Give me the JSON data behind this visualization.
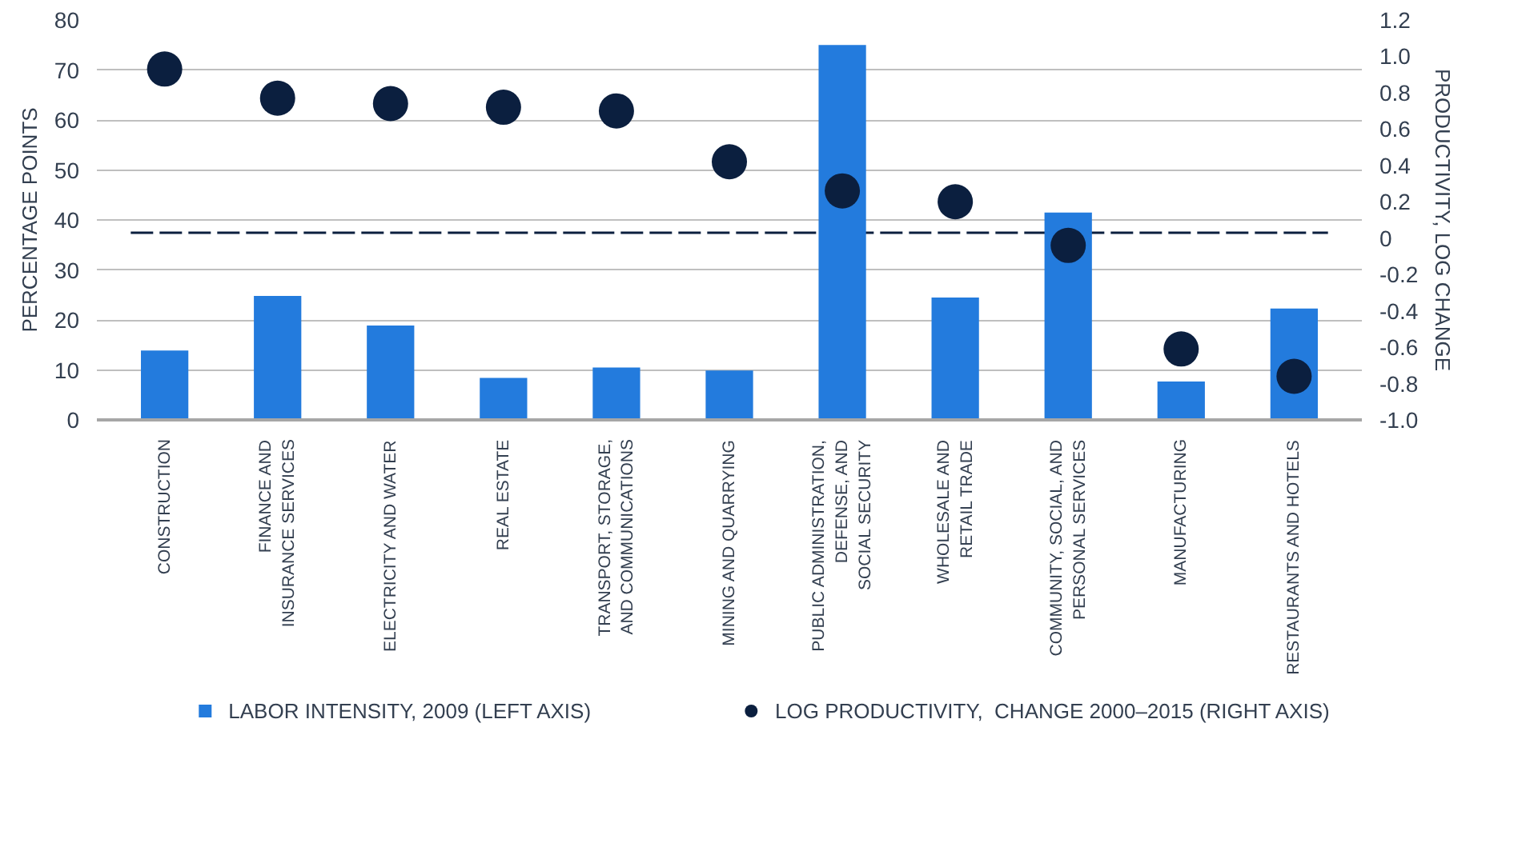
{
  "chart_data": {
    "type": "bar",
    "ylabel": "PERCENTAGE POINTS",
    "y2label": "PRODUCTIVITY, LOG CHANGE",
    "categories": [
      "CONSTRUCTION",
      "FINANCE AND\nINSURANCE SERVICES",
      "ELECTRICITY AND WATER",
      "REAL ESTATE",
      "TRANSPORT, STORAGE,\nAND COMMUNICATIONS",
      "MINING AND QUARRYING",
      "PUBLIC ADMINISTRATION,\nDEFENSE, AND\nSOCIAL SECURITY",
      "WHOLESALE AND\nRETAIL TRADE",
      "COMMUNITY, SOCIAL, AND\nPERSONAL SERVICES",
      "MANUFACTURING",
      "RESTAURANTS AND HOTELS"
    ],
    "series": [
      {
        "name": "LABOR INTENSITY, 2009 (LEFT AXIS)",
        "color": "#237bdd",
        "values": [
          13.9,
          24.8,
          18.9,
          8.4,
          10.5,
          9.9,
          75,
          24.5,
          41.5,
          7.7,
          22.3
        ]
      },
      {
        "name": "LOG PRODUCTIVITY,  CHANGE 2000–2015 (RIGHT AXIS)",
        "type": "scatter",
        "axis": "y2",
        "color": "#0b1f3f",
        "values": [
          0.93,
          0.77,
          0.74,
          0.72,
          0.7,
          0.42,
          0.26,
          0.2,
          -0.04,
          -0.61,
          -0.76
        ]
      }
    ],
    "ylim": [
      0,
      80
    ],
    "yticks": [
      0,
      10,
      20,
      30,
      40,
      50,
      60,
      70,
      80
    ],
    "y2lim": [
      -1.0,
      1.2
    ],
    "y2ticks": [
      {
        "value": -1.0,
        "label": "-1.0"
      },
      {
        "value": -0.8,
        "label": "-0.8"
      },
      {
        "value": -0.6,
        "label": "-0.6"
      },
      {
        "value": -0.4,
        "label": "-0.4"
      },
      {
        "value": -0.2,
        "label": "-0.2"
      },
      0,
      {
        "value": 0.2,
        "label": "0.2"
      },
      {
        "value": 0.4,
        "label": "0.4"
      },
      {
        "value": 0.6,
        "label": "0.6"
      },
      {
        "value": 0.8,
        "label": "0.8"
      },
      {
        "value": 1.0,
        "label": "1.0"
      },
      {
        "value": 1.2,
        "label": "1.2"
      }
    ],
    "ref_lines": [
      {
        "axis": "y2",
        "value": 0.03,
        "color": "#0b1f3f",
        "line_style": "dashed"
      }
    ],
    "grid": "y",
    "legend": "bottom",
    "marker": "circle"
  }
}
